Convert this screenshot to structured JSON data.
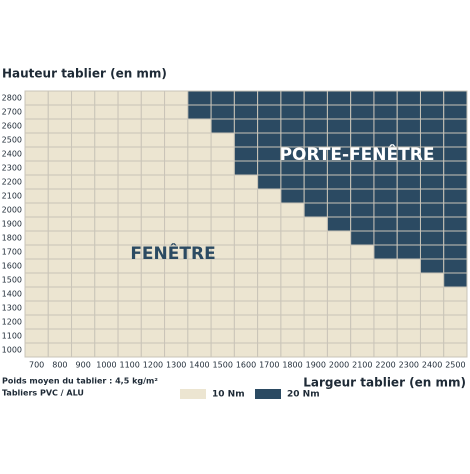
{
  "chart_data": {
    "type": "heatmap",
    "title": "Hauteur tablier (en mm)",
    "x_label": "Largeur tablier (en mm)",
    "notes": [
      "Poids moyen du tablier : 4,5 kg/m²",
      "Tabliers PVC / ALU"
    ],
    "annotations": [
      "PORTE-FENÊTRE",
      "FENÊTRE"
    ],
    "x_categories": [
      700,
      800,
      900,
      1000,
      1100,
      1200,
      1300,
      1400,
      1500,
      1600,
      1700,
      1800,
      1900,
      2000,
      2100,
      2200,
      2300,
      2400,
      2500
    ],
    "y_categories": [
      1000,
      1100,
      1200,
      1300,
      1400,
      1500,
      1600,
      1700,
      1800,
      1900,
      2000,
      2100,
      2200,
      2300,
      2400,
      2500,
      2600,
      2700,
      2800
    ],
    "legend": [
      {
        "label": "10 Nm",
        "value": 10,
        "color": "#ece5d1"
      },
      {
        "label": "20 Nm",
        "value": 20,
        "color": "#2b4a62"
      }
    ],
    "values": [
      [
        10,
        10,
        10,
        10,
        10,
        10,
        10,
        10,
        10,
        10,
        10,
        10,
        10,
        10,
        10,
        10,
        10,
        10,
        10
      ],
      [
        10,
        10,
        10,
        10,
        10,
        10,
        10,
        10,
        10,
        10,
        10,
        10,
        10,
        10,
        10,
        10,
        10,
        10,
        10
      ],
      [
        10,
        10,
        10,
        10,
        10,
        10,
        10,
        10,
        10,
        10,
        10,
        10,
        10,
        10,
        10,
        10,
        10,
        10,
        10
      ],
      [
        10,
        10,
        10,
        10,
        10,
        10,
        10,
        10,
        10,
        10,
        10,
        10,
        10,
        10,
        10,
        10,
        10,
        10,
        10
      ],
      [
        10,
        10,
        10,
        10,
        10,
        10,
        10,
        10,
        10,
        10,
        10,
        10,
        10,
        10,
        10,
        10,
        10,
        10,
        10
      ],
      [
        10,
        10,
        10,
        10,
        10,
        10,
        10,
        10,
        10,
        10,
        10,
        10,
        10,
        10,
        10,
        10,
        10,
        10,
        20
      ],
      [
        10,
        10,
        10,
        10,
        10,
        10,
        10,
        10,
        10,
        10,
        10,
        10,
        10,
        10,
        10,
        10,
        10,
        20,
        20
      ],
      [
        10,
        10,
        10,
        10,
        10,
        10,
        10,
        10,
        10,
        10,
        10,
        10,
        10,
        10,
        10,
        20,
        20,
        20,
        20
      ],
      [
        10,
        10,
        10,
        10,
        10,
        10,
        10,
        10,
        10,
        10,
        10,
        10,
        10,
        10,
        20,
        20,
        20,
        20,
        20
      ],
      [
        10,
        10,
        10,
        10,
        10,
        10,
        10,
        10,
        10,
        10,
        10,
        10,
        10,
        20,
        20,
        20,
        20,
        20,
        20
      ],
      [
        10,
        10,
        10,
        10,
        10,
        10,
        10,
        10,
        10,
        10,
        10,
        10,
        20,
        20,
        20,
        20,
        20,
        20,
        20
      ],
      [
        10,
        10,
        10,
        10,
        10,
        10,
        10,
        10,
        10,
        10,
        10,
        20,
        20,
        20,
        20,
        20,
        20,
        20,
        20
      ],
      [
        10,
        10,
        10,
        10,
        10,
        10,
        10,
        10,
        10,
        10,
        20,
        20,
        20,
        20,
        20,
        20,
        20,
        20,
        20
      ],
      [
        10,
        10,
        10,
        10,
        10,
        10,
        10,
        10,
        10,
        20,
        20,
        20,
        20,
        20,
        20,
        20,
        20,
        20,
        20
      ],
      [
        10,
        10,
        10,
        10,
        10,
        10,
        10,
        10,
        10,
        20,
        20,
        20,
        20,
        20,
        20,
        20,
        20,
        20,
        20
      ],
      [
        10,
        10,
        10,
        10,
        10,
        10,
        10,
        10,
        10,
        20,
        20,
        20,
        20,
        20,
        20,
        20,
        20,
        20,
        20
      ],
      [
        10,
        10,
        10,
        10,
        10,
        10,
        10,
        10,
        20,
        20,
        20,
        20,
        20,
        20,
        20,
        20,
        20,
        20,
        20
      ],
      [
        10,
        10,
        10,
        10,
        10,
        10,
        10,
        20,
        20,
        20,
        20,
        20,
        20,
        20,
        20,
        20,
        20,
        20,
        20
      ],
      [
        10,
        10,
        10,
        10,
        10,
        10,
        10,
        20,
        20,
        20,
        20,
        20,
        20,
        20,
        20,
        20,
        20,
        20,
        20
      ]
    ]
  }
}
